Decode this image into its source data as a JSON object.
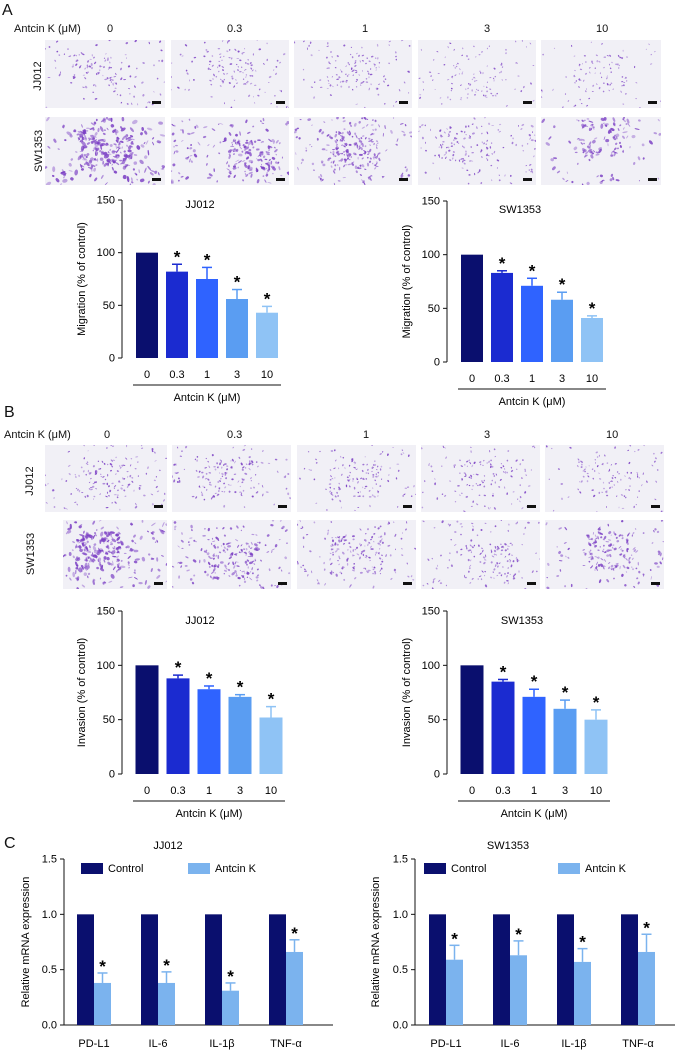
{
  "panelA": {
    "letter": "A",
    "dose_label": "Antcin K (μM)",
    "doses": [
      "0",
      "0.3",
      "1",
      "3",
      "10"
    ],
    "rows": [
      "JJ012",
      "SW1353"
    ]
  },
  "panelB": {
    "letter": "B",
    "dose_label": "Antcin K (μM)",
    "doses": [
      "0",
      "0.3",
      "1",
      "3",
      "10"
    ],
    "rows": [
      "JJ012",
      "SW1353"
    ]
  },
  "panelC": {
    "letter": "C"
  },
  "colors": {
    "dose": [
      "#0a0f6e",
      "#1b2bd0",
      "#2f63ff",
      "#5a9df2",
      "#8fc3f5"
    ],
    "control": "#0a0f6e",
    "antcin": "#7bb3ee",
    "stain": "#7b3fc4"
  },
  "chart_data": [
    {
      "type": "bar",
      "title": "JJ012",
      "ylabel": "Migration (% of control)",
      "xlabel": "Antcin K (μM)",
      "categories": [
        "0",
        "0.3",
        "1",
        "3",
        "10"
      ],
      "values": [
        100,
        82,
        75,
        56,
        43
      ],
      "errors": [
        0,
        7,
        11,
        9,
        6
      ],
      "significance": [
        "",
        "*",
        "*",
        "*",
        "*"
      ],
      "ylim": [
        0,
        150
      ],
      "yticks": [
        "0",
        "50",
        "100",
        "150"
      ]
    },
    {
      "type": "bar",
      "title": "SW1353",
      "ylabel": "Migration (% of control)",
      "xlabel": "Antcin K (μM)",
      "categories": [
        "0",
        "0.3",
        "1",
        "3",
        "10"
      ],
      "values": [
        100,
        83,
        71,
        58,
        41
      ],
      "errors": [
        0,
        2,
        7,
        7,
        2
      ],
      "significance": [
        "",
        "*",
        "*",
        "*",
        "*"
      ],
      "ylim": [
        0,
        150
      ],
      "yticks": [
        "0",
        "50",
        "100",
        "150"
      ]
    },
    {
      "type": "bar",
      "title": "JJ012",
      "ylabel": "Invasion (% of control)",
      "xlabel": "Antcin K (μM)",
      "categories": [
        "0",
        "0.3",
        "1",
        "3",
        "10"
      ],
      "values": [
        100,
        88,
        78,
        71,
        52
      ],
      "errors": [
        0,
        3,
        3,
        2,
        10
      ],
      "significance": [
        "",
        "*",
        "*",
        "*",
        "*"
      ],
      "ylim": [
        0,
        150
      ],
      "yticks": [
        "0",
        "50",
        "100",
        "150"
      ]
    },
    {
      "type": "bar",
      "title": "SW1353",
      "ylabel": "Invasion (% of control)",
      "xlabel": "Antcin K (μM)",
      "categories": [
        "0",
        "0.3",
        "1",
        "3",
        "10"
      ],
      "values": [
        100,
        85,
        71,
        60,
        50
      ],
      "errors": [
        0,
        2,
        7,
        8,
        9
      ],
      "significance": [
        "",
        "*",
        "*",
        "*",
        "*"
      ],
      "ylim": [
        0,
        150
      ],
      "yticks": [
        "0",
        "50",
        "100",
        "150"
      ]
    },
    {
      "type": "bar",
      "title": "JJ012",
      "ylabel": "Relative mRNA expression",
      "categories": [
        "PD-L1",
        "IL-6",
        "IL-1β",
        "TNF-α"
      ],
      "legend": [
        "Control",
        "Antcin K"
      ],
      "series": [
        {
          "name": "Control",
          "values": [
            1.0,
            1.0,
            1.0,
            1.0
          ],
          "errors": [
            0,
            0,
            0,
            0
          ]
        },
        {
          "name": "Antcin K",
          "values": [
            0.38,
            0.38,
            0.31,
            0.66
          ],
          "errors": [
            0.09,
            0.1,
            0.07,
            0.11
          ]
        }
      ],
      "significance": [
        "*",
        "*",
        "*",
        "*"
      ],
      "ylim": [
        0,
        1.5
      ],
      "yticks": [
        "0.0",
        "0.5",
        "1.0",
        "1.5"
      ]
    },
    {
      "type": "bar",
      "title": "SW1353",
      "ylabel": "Relative mRNA expression",
      "categories": [
        "PD-L1",
        "IL-6",
        "IL-1β",
        "TNF-α"
      ],
      "legend": [
        "Control",
        "Antcin K"
      ],
      "series": [
        {
          "name": "Control",
          "values": [
            1.0,
            1.0,
            1.0,
            1.0
          ],
          "errors": [
            0,
            0,
            0,
            0
          ]
        },
        {
          "name": "Antcin K",
          "values": [
            0.59,
            0.63,
            0.57,
            0.66
          ],
          "errors": [
            0.13,
            0.13,
            0.12,
            0.16
          ]
        }
      ],
      "significance": [
        "*",
        "*",
        "*",
        "*"
      ],
      "ylim": [
        0,
        1.5
      ],
      "yticks": [
        "0.0",
        "0.5",
        "1.0",
        "1.5"
      ]
    }
  ]
}
